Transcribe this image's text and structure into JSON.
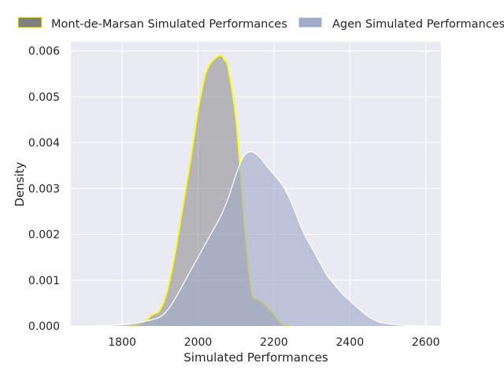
{
  "chart_data": {
    "type": "area",
    "title": "",
    "xlabel": "Simulated Performances",
    "ylabel": "Density",
    "xlim": [
      1665,
      2640
    ],
    "ylim": [
      0,
      0.0062
    ],
    "xticks": [
      1800,
      2000,
      2200,
      2400,
      2600
    ],
    "xtick_labels": [
      "1800",
      "2000",
      "2200",
      "2400",
      "2600"
    ],
    "yticks": [
      0,
      0.001,
      0.002,
      0.003,
      0.004,
      0.005,
      0.006
    ],
    "ytick_labels": [
      "0.000",
      "0.001",
      "0.002",
      "0.003",
      "0.004",
      "0.005",
      "0.006"
    ],
    "grid": true,
    "legend_position": "top",
    "series": [
      {
        "name": "Mont-de-Marsan Simulated Performances",
        "fill": "#7f7f7f",
        "edge": "#ffff00",
        "x": [
          1820,
          1840,
          1860,
          1880,
          1900,
          1920,
          1940,
          1960,
          1980,
          2000,
          2020,
          2040,
          2060,
          2070,
          2080,
          2100,
          2120,
          2140,
          2160,
          2180,
          2200,
          2220,
          2240
        ],
        "y": [
          0.0,
          3e-05,
          0.0001,
          0.00025,
          0.00035,
          0.0008,
          0.0016,
          0.0026,
          0.0036,
          0.0047,
          0.0055,
          0.0058,
          0.0059,
          0.0058,
          0.0056,
          0.0045,
          0.0025,
          0.0008,
          0.00058,
          0.00045,
          0.00025,
          5e-05,
          0.0
        ]
      },
      {
        "name": "Agen Simulated Performances",
        "fill": "#9fabc8",
        "edge": "#ffffff",
        "x": [
          1710,
          1760,
          1800,
          1840,
          1870,
          1900,
          1920,
          1940,
          1960,
          1980,
          2000,
          2020,
          2040,
          2060,
          2080,
          2100,
          2120,
          2140,
          2160,
          2180,
          2200,
          2220,
          2240,
          2260,
          2280,
          2300,
          2320,
          2340,
          2360,
          2380,
          2400,
          2420,
          2440,
          2460,
          2480,
          2500,
          2550,
          2600
        ],
        "y": [
          0.0,
          1e-05,
          3e-05,
          7e-05,
          0.00012,
          0.0002,
          0.00035,
          0.0006,
          0.0009,
          0.0012,
          0.0015,
          0.0018,
          0.0021,
          0.0024,
          0.0028,
          0.0033,
          0.0037,
          0.0038,
          0.0037,
          0.0035,
          0.0033,
          0.0031,
          0.0028,
          0.0024,
          0.002,
          0.0017,
          0.0014,
          0.0011,
          0.0009,
          0.0007,
          0.00055,
          0.0004,
          0.00026,
          0.00015,
          8e-05,
          5e-05,
          1e-05,
          0.0
        ]
      }
    ]
  }
}
